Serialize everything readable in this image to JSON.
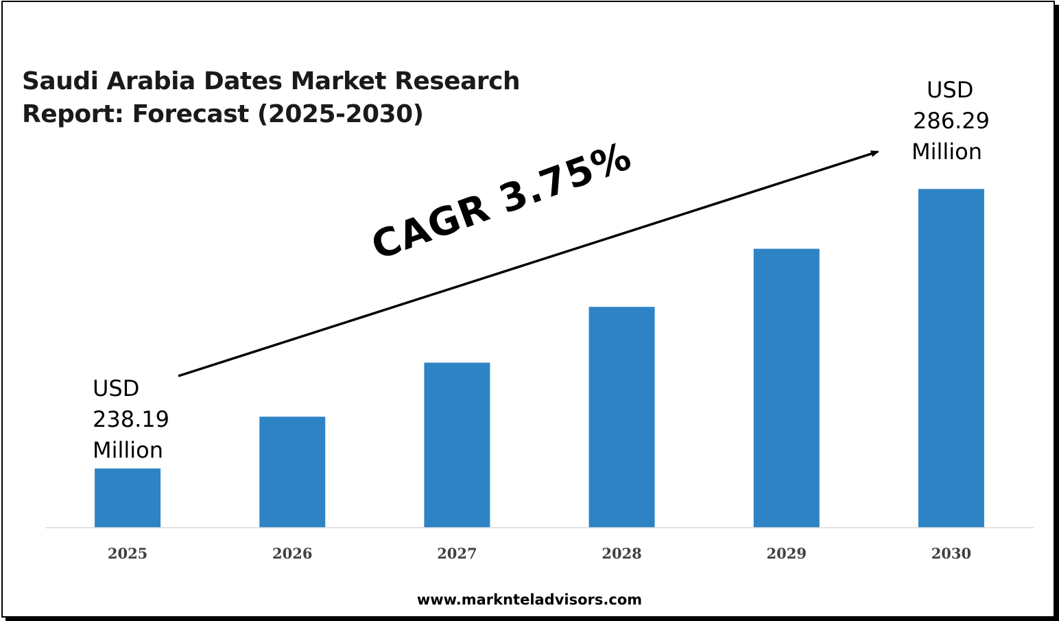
{
  "chart_data": {
    "type": "bar",
    "title": "Saudi Arabia Dates Market Research Report: Forecast (2025-2030)",
    "title_lines": [
      "Saudi Arabia Dates Market Research",
      "Report: Forecast (2025-2030)"
    ],
    "categories": [
      "2025",
      "2026",
      "2027",
      "2028",
      "2029",
      "2030"
    ],
    "values": [
      238.19,
      247.1,
      256.4,
      266.0,
      276.0,
      286.29
    ],
    "unit": "USD Million",
    "ylim": [
      228,
      290
    ],
    "bar_color": "#2e83c5",
    "grid": false,
    "legend": "none",
    "start_label": [
      "USD",
      "238.19",
      "Million"
    ],
    "end_label": [
      "USD",
      "286.29",
      "Million"
    ],
    "annotation": "CAGR 3.75%"
  },
  "footer": "www.marknteladvisors.com"
}
